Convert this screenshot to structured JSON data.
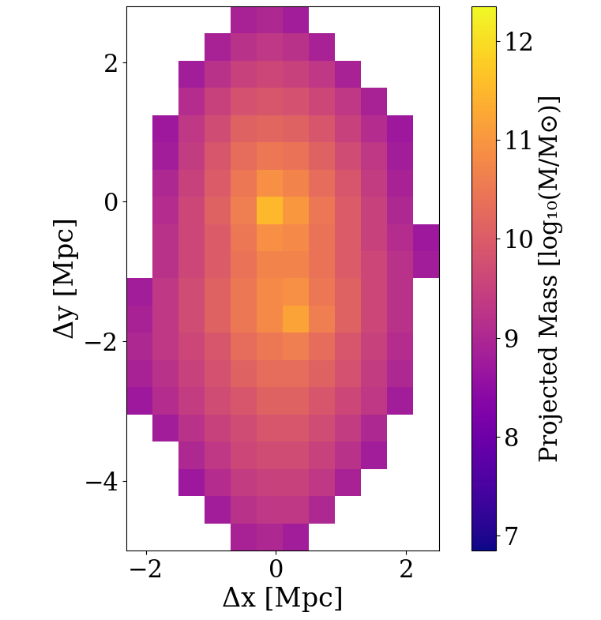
{
  "chart_data": {
    "type": "heatmap",
    "xlabel": "Δx [Mpc]",
    "ylabel": "Δy [Mpc]",
    "colorbar_label": "Projected Mass [log₁₀(M/M⊙)]",
    "color": "plasma",
    "xlim": [
      -2.3,
      2.5
    ],
    "ylim": [
      -5.0,
      2.8
    ],
    "xticks": [
      {
        "value": -2,
        "label": "−2"
      },
      0,
      2
    ],
    "yticks": [
      {
        "value": -4,
        "label": "−4"
      },
      {
        "value": -2,
        "label": "−2"
      },
      0,
      2
    ],
    "color_range": [
      6.85,
      12.35
    ],
    "color_ticks": [
      7,
      8,
      9,
      10,
      11,
      12
    ],
    "x_edges": [
      -2.3,
      -1.9,
      -1.5,
      -1.1,
      -0.7,
      -0.3,
      0.1,
      0.5,
      0.9,
      1.3,
      1.7,
      2.1,
      2.5
    ],
    "y_edges": [
      -5.0,
      -4.61,
      -4.22,
      -3.83,
      -3.44,
      -3.05,
      -2.66,
      -2.27,
      -1.88,
      -1.49,
      -1.1,
      -0.71,
      -0.32,
      0.07,
      0.46,
      0.85,
      1.24,
      1.63,
      2.02,
      2.41,
      2.8
    ],
    "cells": [
      [
        null,
        null,
        null,
        null,
        8.9,
        9.0,
        8.8,
        null,
        null,
        null,
        null,
        null
      ],
      [
        null,
        null,
        null,
        8.8,
        9.2,
        9.3,
        9.3,
        9.0,
        null,
        null,
        null,
        null
      ],
      [
        null,
        null,
        8.7,
        9.1,
        9.4,
        9.5,
        9.5,
        9.3,
        8.9,
        null,
        null,
        null
      ],
      [
        null,
        null,
        9.0,
        9.3,
        9.6,
        9.7,
        9.7,
        9.5,
        9.2,
        8.8,
        null,
        null
      ],
      [
        null,
        8.8,
        9.2,
        9.5,
        9.7,
        9.9,
        9.9,
        9.7,
        9.4,
        9.0,
        null,
        null
      ],
      [
        8.7,
        9.1,
        9.4,
        9.7,
        9.9,
        10.1,
        10.1,
        9.9,
        9.6,
        9.3,
        8.8,
        null
      ],
      [
        8.9,
        9.2,
        9.5,
        9.8,
        10.1,
        10.3,
        10.3,
        10.1,
        9.8,
        9.4,
        9.0,
        null
      ],
      [
        9.0,
        9.3,
        9.6,
        9.9,
        10.3,
        10.5,
        10.6,
        10.3,
        9.9,
        9.5,
        9.1,
        null
      ],
      [
        8.9,
        9.3,
        9.7,
        10.1,
        10.5,
        10.8,
        11.2,
        10.6,
        10.1,
        9.6,
        9.2,
        null
      ],
      [
        8.8,
        9.3,
        9.7,
        10.1,
        10.5,
        10.8,
        10.9,
        10.5,
        10.1,
        9.6,
        9.2,
        null
      ],
      [
        null,
        9.2,
        9.6,
        10.0,
        10.4,
        10.7,
        10.7,
        10.4,
        10.0,
        9.6,
        9.2,
        8.8
      ],
      [
        null,
        9.2,
        9.6,
        10.0,
        10.5,
        10.9,
        10.8,
        10.4,
        10.0,
        9.5,
        9.1,
        8.7
      ],
      [
        null,
        9.1,
        9.6,
        10.1,
        10.6,
        11.5,
        11.0,
        10.5,
        10.0,
        9.5,
        9.0,
        null
      ],
      [
        null,
        9.0,
        9.5,
        10.0,
        10.5,
        10.9,
        10.7,
        10.3,
        9.9,
        9.4,
        8.9,
        null
      ],
      [
        null,
        8.8,
        9.4,
        9.9,
        10.3,
        10.5,
        10.4,
        10.1,
        9.7,
        9.3,
        8.8,
        null
      ],
      [
        null,
        8.7,
        9.3,
        9.7,
        10.1,
        10.2,
        10.1,
        9.9,
        9.5,
        9.1,
        8.7,
        null
      ],
      [
        null,
        null,
        9.1,
        9.5,
        9.8,
        9.9,
        9.8,
        9.6,
        9.3,
        8.9,
        null,
        null
      ],
      [
        null,
        null,
        8.8,
        9.2,
        9.5,
        9.6,
        9.5,
        9.3,
        8.9,
        null,
        null,
        null
      ],
      [
        null,
        null,
        null,
        8.9,
        9.2,
        9.3,
        9.2,
        8.9,
        null,
        null,
        null,
        null
      ],
      [
        null,
        null,
        null,
        null,
        8.9,
        9.0,
        8.8,
        null,
        null,
        null,
        null,
        null
      ]
    ]
  }
}
